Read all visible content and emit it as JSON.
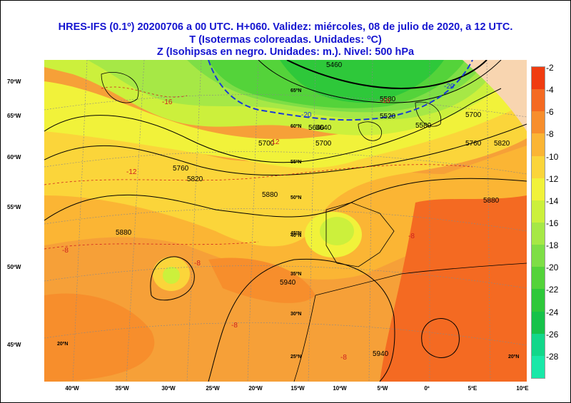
{
  "title": {
    "line1": "HRES-IFS (0.1º) 20200706  a 00 UTC.  H+060.  Validez: miércoles, 08 de julio de 2020,  a  12 UTC.",
    "line2": "T (Isotermas coloreadas. Unidades: ºC)",
    "line3": "Z (Isohipsas en negro. Unidades: m.).   Nivel: 500 hPa"
  },
  "axes": {
    "left_labels": [
      "70ºW",
      "65ºW",
      "60ºW",
      "55ºW",
      "50ºW",
      "45ºW"
    ],
    "bottom_labels": [
      "40ºW",
      "35ºW",
      "30ºW",
      "25ºW",
      "20ºW",
      "15ºW",
      "10ºW",
      "5ºW",
      "0º",
      "5ºE",
      "10ºE"
    ],
    "inner_lat_labels": [
      "65ºN",
      "60ºN",
      "55ºN",
      "50ºN",
      "45ºN",
      "40ºN",
      "35ºN",
      "30ºN",
      "25ºN",
      "20ºN",
      "20ºN"
    ]
  },
  "colorbar": {
    "labels": [
      "-2",
      "-4",
      "-6",
      "-8",
      "-10",
      "-12",
      "-14",
      "-16",
      "-18",
      "-20",
      "-22",
      "-24",
      "-26",
      "-28"
    ],
    "colors": [
      "#f03c10",
      "#f46a22",
      "#f78e2c",
      "#fbb534",
      "#fbd53a",
      "#f1f23a",
      "#ccf03c",
      "#a6e846",
      "#7ede46",
      "#54d33a",
      "#2ec83a",
      "#16c24a",
      "#12d78a",
      "#19e8a8"
    ]
  },
  "contours": {
    "height_labels": [
      "5460",
      "5520",
      "5580",
      "5640",
      "5700",
      "5760",
      "5820",
      "5880",
      "5940",
      "5580",
      "5700",
      "5760",
      "5820",
      "5880",
      "5880",
      "5940",
      "5700",
      "5640"
    ],
    "temp_labels": [
      "-20",
      "-20",
      "-16",
      "-16",
      "-12",
      "-12",
      "-8",
      "-8",
      "-8",
      "-8",
      "-8"
    ]
  }
}
